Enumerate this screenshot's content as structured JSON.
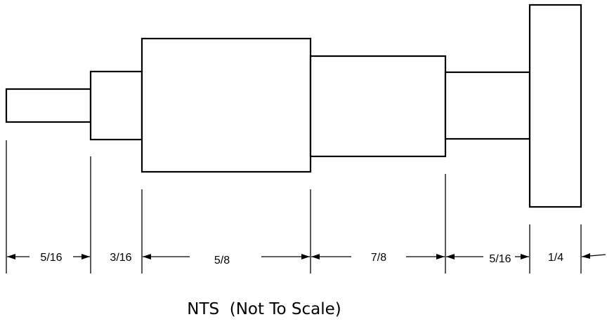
{
  "diagram": {
    "segments": [
      {
        "id": "seg1",
        "dimension": "5/16"
      },
      {
        "id": "seg2",
        "dimension": "3/16"
      },
      {
        "id": "seg3",
        "dimension": "5/8"
      },
      {
        "id": "seg4",
        "dimension": "7/8"
      },
      {
        "id": "seg5",
        "dimension": "5/16"
      },
      {
        "id": "seg6",
        "dimension": "1/4"
      }
    ],
    "note": "NTS  (Not To Scale)"
  }
}
